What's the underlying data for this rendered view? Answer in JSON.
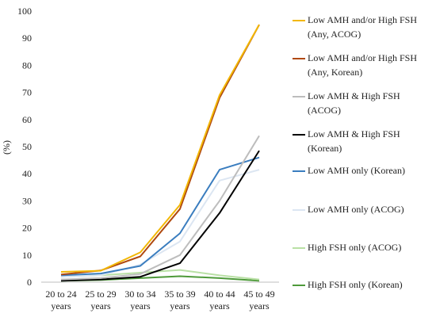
{
  "chart_data": {
    "type": "line",
    "ylabel": "(%)",
    "xlabel": "",
    "ylim": [
      0,
      100
    ],
    "yticks": [
      0,
      10,
      20,
      30,
      40,
      50,
      60,
      70,
      80,
      90,
      100
    ],
    "grid": false,
    "legend_position": "right",
    "categories": [
      "20 to 24\nyears",
      "25 to 29\nyears",
      "30 to 34\nyears",
      "35 to 39\nyears",
      "40 to 44\nyears",
      "45 to 49\nyears"
    ],
    "series": [
      {
        "name": "Low AMH and/or High FSH\n(Any, ACOG)",
        "color": "#F2B705",
        "values": [
          3.8,
          4.2,
          11.0,
          28.5,
          69.0,
          95.0
        ]
      },
      {
        "name": "Low AMH and/or High FSH\n(Any, Korean)",
        "color": "#B0490F",
        "values": [
          2.8,
          4.3,
          9.5,
          27.0,
          68.0,
          95.0
        ]
      },
      {
        "name": "Low AMH & High FSH\n(ACOG)",
        "color": "#BDBDBD",
        "values": [
          1.0,
          1.5,
          3.0,
          10.0,
          30.0,
          54.0
        ]
      },
      {
        "name": "Low AMH & High FSH\n(Korean)",
        "color": "#000000",
        "values": [
          0.5,
          1.0,
          2.0,
          7.0,
          25.5,
          48.5
        ]
      },
      {
        "name": "Low AMH only (Korean)",
        "color": "#3A7DBF",
        "values": [
          2.5,
          3.2,
          6.0,
          18.0,
          41.5,
          46.0
        ]
      },
      {
        "name": "Low AMH only (ACOG)",
        "color": "#DCE6F2",
        "values": [
          2.0,
          2.5,
          6.5,
          15.0,
          37.5,
          41.5
        ]
      },
      {
        "name": "High FSH only (ACOG)",
        "color": "#B9E0A5",
        "values": [
          2.0,
          2.5,
          3.5,
          4.5,
          2.5,
          1.0
        ]
      },
      {
        "name": "High FSH only (Korean)",
        "color": "#4E9A3A",
        "values": [
          0.5,
          0.8,
          1.5,
          2.2,
          1.5,
          0.5
        ]
      }
    ]
  }
}
